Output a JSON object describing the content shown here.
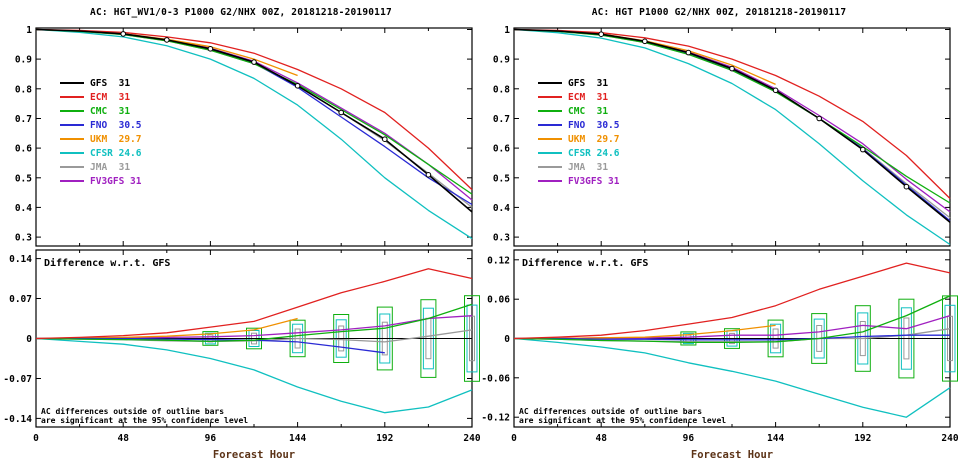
{
  "xlabel": "Forecast Hour",
  "x": [
    0,
    24,
    48,
    72,
    96,
    120,
    144,
    168,
    192,
    216,
    240
  ],
  "xticks": [
    0,
    48,
    96,
    144,
    192,
    240
  ],
  "diff_label": "Difference w.r.t. GFS",
  "note_line1": "AC differences outside of outline bars",
  "note_line2": "are significant at the 95% confidence level",
  "legend": [
    {
      "name": "GFS",
      "value": "31",
      "color": "#000000"
    },
    {
      "name": "ECM",
      "value": "31",
      "color": "#e12120"
    },
    {
      "name": "CMC",
      "value": "31",
      "color": "#0faf0f"
    },
    {
      "name": "FNO",
      "value": "30.5",
      "color": "#2a2ad4"
    },
    {
      "name": "UKM",
      "value": "29.7",
      "color": "#f09000"
    },
    {
      "name": "CFSR",
      "value": "24.6",
      "color": "#10c0c0"
    },
    {
      "name": "JMA",
      "value": "31",
      "color": "#9a9a9a"
    },
    {
      "name": "FV3GFS",
      "value": "31",
      "color": "#a020c0"
    }
  ],
  "chart_data": [
    {
      "title": "AC: HGT_WV1/0-3 P1000 G2/NHX 00Z, 20181218-20190117",
      "ac": {
        "type": "line",
        "ylim": [
          0.27,
          1.005
        ],
        "yticks": [
          1,
          0.9,
          0.8,
          0.7,
          0.6,
          0.5,
          0.4,
          0.3
        ],
        "ytick_labels": [
          "1",
          "0.9",
          "0.8",
          "0.7",
          "0.6",
          "0.5",
          "0.4",
          "0.3"
        ],
        "series": [
          {
            "name": "GFS",
            "color": "#000000",
            "marker": true,
            "values": [
              1.0,
              0.995,
              0.985,
              0.965,
              0.935,
              0.89,
              0.81,
              0.72,
              0.63,
              0.51,
              0.385
            ]
          },
          {
            "name": "ECM",
            "color": "#e12120",
            "values": [
              1.0,
              0.997,
              0.99,
              0.975,
              0.955,
              0.92,
              0.865,
              0.8,
              0.72,
              0.6,
              0.46
            ]
          },
          {
            "name": "CMC",
            "color": "#0faf0f",
            "values": [
              1.0,
              0.994,
              0.983,
              0.962,
              0.93,
              0.885,
              0.815,
              0.73,
              0.645,
              0.545,
              0.445
            ]
          },
          {
            "name": "FNO",
            "color": "#2a2ad4",
            "values": [
              1.0,
              0.995,
              0.985,
              0.964,
              0.933,
              0.887,
              0.805,
              0.705,
              0.605,
              0.5,
              0.41
            ]
          },
          {
            "name": "UKM",
            "color": "#f09000",
            "values": [
              1.0,
              0.995,
              0.986,
              0.967,
              0.942,
              0.9,
              0.845
            ]
          },
          {
            "name": "CFSR",
            "color": "#10c0c0",
            "values": [
              1.0,
              0.99,
              0.975,
              0.945,
              0.9,
              0.835,
              0.745,
              0.63,
              0.5,
              0.39,
              0.295
            ]
          },
          {
            "name": "JMA",
            "color": "#9a9a9a",
            "values": [
              1.0,
              0.994,
              0.983,
              0.962,
              0.93,
              0.885,
              0.81,
              0.72,
              0.625,
              0.515,
              0.4
            ]
          },
          {
            "name": "FV3GFS",
            "color": "#a020c0",
            "values": [
              1.0,
              0.995,
              0.985,
              0.966,
              0.937,
              0.893,
              0.82,
              0.735,
              0.65,
              0.545,
              0.425
            ]
          }
        ]
      },
      "diff": {
        "type": "line",
        "title": "Difference w.r.t. GFS",
        "ylim": [
          -0.155,
          0.155
        ],
        "yticks": [
          0.14,
          0.07,
          0,
          -0.07,
          -0.14
        ],
        "ytick_labels": [
          "0.14",
          "0.07",
          "0",
          "-0.07",
          "-0.14"
        ],
        "series": [
          {
            "name": "ECM",
            "color": "#e12120",
            "values": [
              0,
              0.002,
              0.005,
              0.01,
              0.02,
              0.03,
              0.055,
              0.08,
              0.1,
              0.122,
              0.105
            ]
          },
          {
            "name": "CMC",
            "color": "#0faf0f",
            "values": [
              0,
              -0.001,
              -0.002,
              -0.003,
              -0.005,
              -0.003,
              0.005,
              0.012,
              0.018,
              0.035,
              0.06
            ]
          },
          {
            "name": "FNO",
            "color": "#2a2ad4",
            "values": [
              0,
              0,
              0,
              -0.001,
              -0.002,
              -0.003,
              -0.006,
              -0.015,
              -0.025
            ]
          },
          {
            "name": "UKM",
            "color": "#f09000",
            "values": [
              0,
              0.001,
              0.002,
              0.004,
              0.008,
              0.015,
              0.035
            ]
          },
          {
            "name": "CFSR",
            "color": "#10c0c0",
            "values": [
              0,
              -0.005,
              -0.01,
              -0.02,
              -0.035,
              -0.055,
              -0.085,
              -0.11,
              -0.13,
              -0.12,
              -0.09
            ]
          },
          {
            "name": "JMA",
            "color": "#9a9a9a",
            "values": [
              0,
              -0.001,
              -0.002,
              -0.004,
              -0.005,
              -0.004,
              0,
              -0.002,
              -0.006,
              0.004,
              0.015
            ]
          },
          {
            "name": "FV3GFS",
            "color": "#a020c0",
            "values": [
              0,
              0,
              0.001,
              0.002,
              0.003,
              0.005,
              0.01,
              0.015,
              0.022,
              0.035,
              0.04
            ]
          }
        ],
        "sig_bars": {
          "x": [
            96,
            120,
            144,
            168,
            192,
            216,
            240
          ],
          "half_height": [
            0.012,
            0.018,
            0.032,
            0.042,
            0.055,
            0.068,
            0.075
          ]
        }
      }
    },
    {
      "title": "AC: HGT P1000 G2/NHX 00Z, 20181218-20190117",
      "ac": {
        "type": "line",
        "ylim": [
          0.27,
          1.005
        ],
        "yticks": [
          1,
          0.9,
          0.8,
          0.7,
          0.6,
          0.5,
          0.4,
          0.3
        ],
        "ytick_labels": [
          "1",
          "0.9",
          "0.8",
          "0.7",
          "0.6",
          "0.5",
          "0.4",
          "0.3"
        ],
        "series": [
          {
            "name": "GFS",
            "color": "#000000",
            "marker": true,
            "values": [
              1.0,
              0.995,
              0.984,
              0.96,
              0.922,
              0.868,
              0.795,
              0.7,
              0.595,
              0.47,
              0.35
            ]
          },
          {
            "name": "ECM",
            "color": "#e12120",
            "values": [
              1.0,
              0.997,
              0.989,
              0.972,
              0.944,
              0.9,
              0.845,
              0.775,
              0.69,
              0.575,
              0.43
            ]
          },
          {
            "name": "CMC",
            "color": "#0faf0f",
            "values": [
              1.0,
              0.994,
              0.981,
              0.956,
              0.916,
              0.862,
              0.79,
              0.7,
              0.605,
              0.505,
              0.415
            ]
          },
          {
            "name": "FNO",
            "color": "#2a2ad4",
            "values": [
              1.0,
              0.995,
              0.983,
              0.959,
              0.92,
              0.866,
              0.793,
              0.7,
              0.598,
              0.475,
              0.355
            ]
          },
          {
            "name": "UKM",
            "color": "#f09000",
            "values": [
              1.0,
              0.995,
              0.985,
              0.962,
              0.928,
              0.88,
              0.815
            ]
          },
          {
            "name": "CFSR",
            "color": "#10c0c0",
            "values": [
              1.0,
              0.989,
              0.971,
              0.938,
              0.885,
              0.818,
              0.73,
              0.615,
              0.49,
              0.375,
              0.275
            ]
          },
          {
            "name": "JMA",
            "color": "#9a9a9a",
            "values": [
              1.0,
              0.994,
              0.981,
              0.956,
              0.917,
              0.863,
              0.79,
              0.7,
              0.6,
              0.48,
              0.365
            ]
          },
          {
            "name": "FV3GFS",
            "color": "#a020c0",
            "values": [
              1.0,
              0.995,
              0.984,
              0.961,
              0.924,
              0.873,
              0.8,
              0.71,
              0.615,
              0.495,
              0.385
            ]
          }
        ]
      },
      "diff": {
        "type": "line",
        "title": "Difference w.r.t. GFS",
        "ylim": [
          -0.135,
          0.135
        ],
        "yticks": [
          0.12,
          0.06,
          0,
          -0.06,
          -0.12
        ],
        "ytick_labels": [
          "0.12",
          "0.06",
          "0",
          "-0.06",
          "-0.12"
        ],
        "series": [
          {
            "name": "ECM",
            "color": "#e12120",
            "values": [
              0,
              0.002,
              0.005,
              0.012,
              0.022,
              0.032,
              0.05,
              0.075,
              0.095,
              0.115,
              0.1
            ]
          },
          {
            "name": "CMC",
            "color": "#0faf0f",
            "values": [
              0,
              -0.001,
              -0.003,
              -0.004,
              -0.006,
              -0.006,
              -0.005,
              0,
              0.01,
              0.035,
              0.065
            ]
          },
          {
            "name": "FNO",
            "color": "#2a2ad4",
            "values": [
              0,
              0,
              -0.001,
              -0.001,
              -0.002,
              -0.002,
              -0.002,
              0,
              0.003,
              0.005,
              0.005
            ]
          },
          {
            "name": "UKM",
            "color": "#f09000",
            "values": [
              0,
              0,
              0.001,
              0.002,
              0.006,
              0.012,
              0.02
            ]
          },
          {
            "name": "CFSR",
            "color": "#10c0c0",
            "values": [
              0,
              -0.006,
              -0.013,
              -0.022,
              -0.037,
              -0.05,
              -0.065,
              -0.085,
              -0.105,
              -0.12,
              -0.075
            ]
          },
          {
            "name": "JMA",
            "color": "#9a9a9a",
            "values": [
              0,
              -0.001,
              -0.003,
              -0.004,
              -0.005,
              -0.005,
              -0.005,
              0,
              0,
              0.005,
              0.015
            ]
          },
          {
            "name": "FV3GFS",
            "color": "#a020c0",
            "values": [
              0,
              0,
              0.001,
              0.001,
              0.002,
              0.005,
              0.005,
              0.01,
              0.02,
              0.015,
              0.035
            ]
          }
        ],
        "sig_bars": {
          "x": [
            96,
            120,
            144,
            168,
            192,
            216,
            240
          ],
          "half_height": [
            0.01,
            0.015,
            0.028,
            0.038,
            0.05,
            0.06,
            0.065
          ]
        }
      }
    }
  ]
}
